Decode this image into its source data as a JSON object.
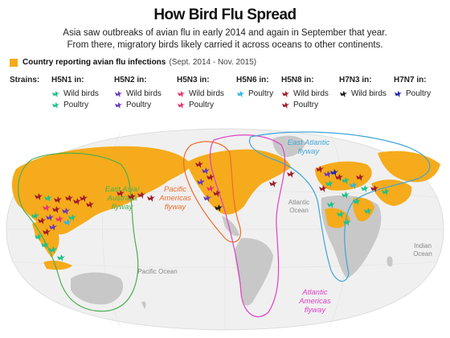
{
  "title": "How Bird Flu Spread",
  "subtitle_line1": "Asia saw outbreaks of avian flu in early 2014 and again in September that year.",
  "subtitle_line2": "From there, migratory birds likely carried it across oceans to other continents.",
  "legend": {
    "label": "Country reporting avian flu infections",
    "note": "(Sept. 2014 - Nov. 2015)",
    "color": "#f5ab1b"
  },
  "strains_label": "Strains:",
  "strains": [
    {
      "name": "H5N1 in:",
      "color": "#20c08a",
      "items": [
        {
          "label": "Wild birds",
          "color": "#20c08a"
        },
        {
          "label": "Poultry",
          "color": "#20c08a"
        }
      ]
    },
    {
      "name": "H5N2 in:",
      "color": "#6a3bb8",
      "items": [
        {
          "label": "Wild birds",
          "color": "#6a3bb8"
        },
        {
          "label": "Poultry",
          "color": "#6a3bb8"
        }
      ]
    },
    {
      "name": "H5N3 in:",
      "color": "#e8366e",
      "items": [
        {
          "label": "Wild birds",
          "color": "#e8366e"
        },
        {
          "label": "Poultry",
          "color": "#e8366e"
        }
      ]
    },
    {
      "name": "H5N6 in:",
      "color": "#2ab6e6",
      "items": [
        {
          "label": "Poultry",
          "color": "#2ab6e6"
        }
      ]
    },
    {
      "name": "H5N8 in:",
      "color": "#a01d2a",
      "items": [
        {
          "label": "Wild birds",
          "color": "#a01d2a"
        },
        {
          "label": "Poultry",
          "color": "#a01d2a"
        }
      ]
    },
    {
      "name": "H7N3 in:",
      "color": "#1e1e1e",
      "items": [
        {
          "label": "Wild birds",
          "color": "#1e1e1e"
        }
      ]
    },
    {
      "name": "H7N7 in:",
      "color": "#2226a8",
      "items": [
        {
          "label": "Poultry",
          "color": "#2226a8"
        }
      ]
    }
  ],
  "flyways": {
    "east_asia": {
      "label1": "East Asia/",
      "label2": "Australia",
      "label3": "flyway",
      "color": "#4caf50"
    },
    "pacific": {
      "label1": "Pacific",
      "label2": "Americas",
      "label3": "flyway",
      "color": "#ef6c2c"
    },
    "atlantic": {
      "label1": "Atlantic",
      "label2": "Americas",
      "label3": "flyway",
      "color": "#e040c8"
    },
    "east_atlantic": {
      "label1": "East Atlantic",
      "label2": "flyway",
      "color": "#3ea6d8"
    }
  },
  "oceans": {
    "atlantic1": "Atlantic",
    "atlantic2": "Ocean",
    "pacific": "Pacific Ocean",
    "indian1": "Indian",
    "indian2": "Ocean"
  }
}
